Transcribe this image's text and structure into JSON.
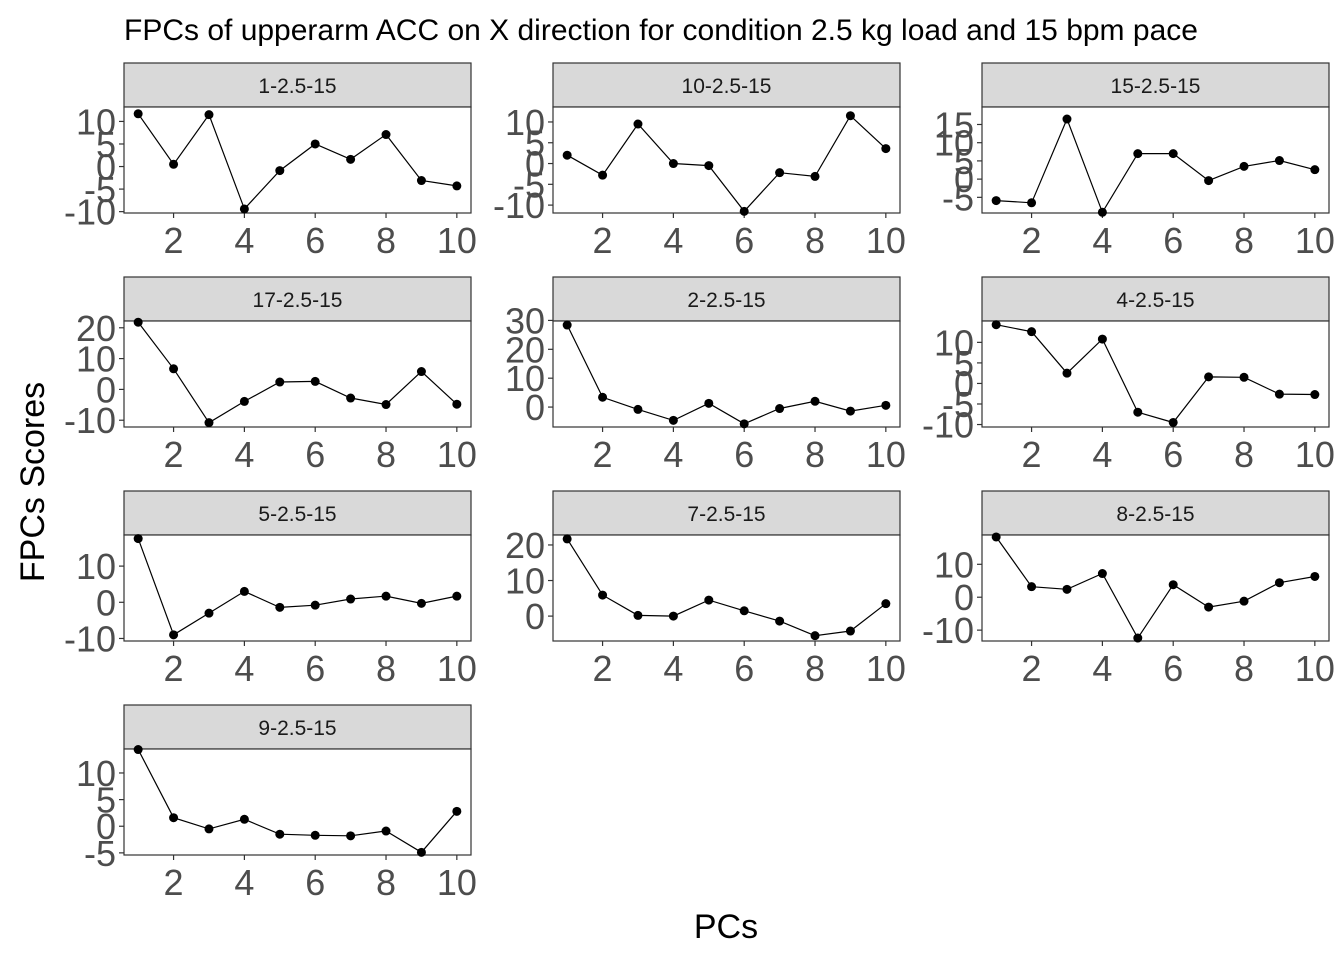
{
  "chart_data": {
    "type": "line",
    "title": "FPCs of upperarm ACC on X direction for condition 2.5 kg load and 15 bpm pace",
    "xlabel": "PCs",
    "ylabel": "FPCs Scores",
    "x_ticks": [
      "2",
      "4",
      "6",
      "8",
      "10"
    ],
    "x": [
      1,
      2,
      3,
      4,
      5,
      6,
      7,
      8,
      9,
      10
    ],
    "colors": {
      "line": "#000000",
      "strip": "#d9d9d9",
      "tick_label": "#4d4d4d"
    },
    "panels": [
      {
        "label": "1-2.5-15",
        "ylim": [
          -10.3,
          13.2
        ],
        "y_ticks": [
          "10",
          "5",
          "0",
          "-5",
          "-10"
        ],
        "values": [
          11.7,
          0.5,
          11.5,
          -9.4,
          -0.9,
          5.0,
          1.6,
          7.1,
          -3.1,
          -4.3
        ]
      },
      {
        "label": "10-2.5-15",
        "ylim": [
          -11.9,
          13.6
        ],
        "y_ticks": [
          "10",
          "5",
          "0",
          "-5",
          "-10"
        ],
        "values": [
          2.0,
          -2.8,
          9.5,
          0.0,
          -0.5,
          -11.5,
          -2.2,
          -3.1,
          11.5,
          3.6
        ]
      },
      {
        "label": "15-2.5-15",
        "ylim": [
          -9.3,
          19.8
        ],
        "y_ticks": [
          "15",
          "10",
          "5",
          "0",
          "-5"
        ],
        "values": [
          -5.9,
          -6.5,
          16.5,
          -9.1,
          7.0,
          7.0,
          -0.4,
          3.5,
          5.1,
          2.6
        ]
      },
      {
        "label": "17-2.5-15",
        "ylim": [
          -12.2,
          22.2
        ],
        "y_ticks": [
          "20",
          "10",
          "0",
          "-10"
        ],
        "values": [
          21.8,
          6.7,
          -10.8,
          -3.9,
          2.4,
          2.6,
          -2.8,
          -4.9,
          5.8,
          -4.8
        ]
      },
      {
        "label": "2-2.5-15",
        "ylim": [
          -6.9,
          29.8
        ],
        "y_ticks": [
          "30",
          "20",
          "10",
          "0"
        ],
        "values": [
          28.4,
          3.4,
          -0.8,
          -4.6,
          1.3,
          -5.8,
          -0.5,
          2.0,
          -1.4,
          0.6
        ]
      },
      {
        "label": "4-2.5-15",
        "ylim": [
          -10.6,
          15.2
        ],
        "y_ticks": [
          "10",
          "5",
          "0",
          "-5",
          "-10"
        ],
        "values": [
          14.3,
          12.6,
          2.5,
          10.8,
          -7.0,
          -9.5,
          1.6,
          1.5,
          -2.6,
          -2.7
        ]
      },
      {
        "label": "5-2.5-15",
        "ylim": [
          -10.7,
          18.6
        ],
        "y_ticks": [
          "10",
          "0",
          "-10"
        ],
        "values": [
          17.6,
          -9.0,
          -3.0,
          3.0,
          -1.4,
          -0.8,
          0.9,
          1.7,
          -0.3,
          1.7
        ]
      },
      {
        "label": "7-2.5-15",
        "ylim": [
          -7.0,
          22.8
        ],
        "y_ticks": [
          "20",
          "10",
          "0"
        ],
        "values": [
          21.7,
          5.9,
          0.2,
          0.0,
          4.5,
          1.5,
          -1.4,
          -5.5,
          -4.2,
          3.5
        ]
      },
      {
        "label": "8-2.5-15",
        "ylim": [
          -13.3,
          18.9
        ],
        "y_ticks": [
          "10",
          "0",
          "-10"
        ],
        "values": [
          18.3,
          3.2,
          2.4,
          7.2,
          -12.4,
          3.8,
          -3.0,
          -1.2,
          4.4,
          6.3
        ]
      },
      {
        "label": "9-2.5-15",
        "ylim": [
          -5.4,
          14.5
        ],
        "y_ticks": [
          "10",
          "5",
          "0",
          "-5"
        ],
        "values": [
          14.4,
          1.6,
          -0.5,
          1.3,
          -1.5,
          -1.7,
          -1.8,
          -0.9,
          -4.9,
          2.8
        ]
      }
    ]
  }
}
